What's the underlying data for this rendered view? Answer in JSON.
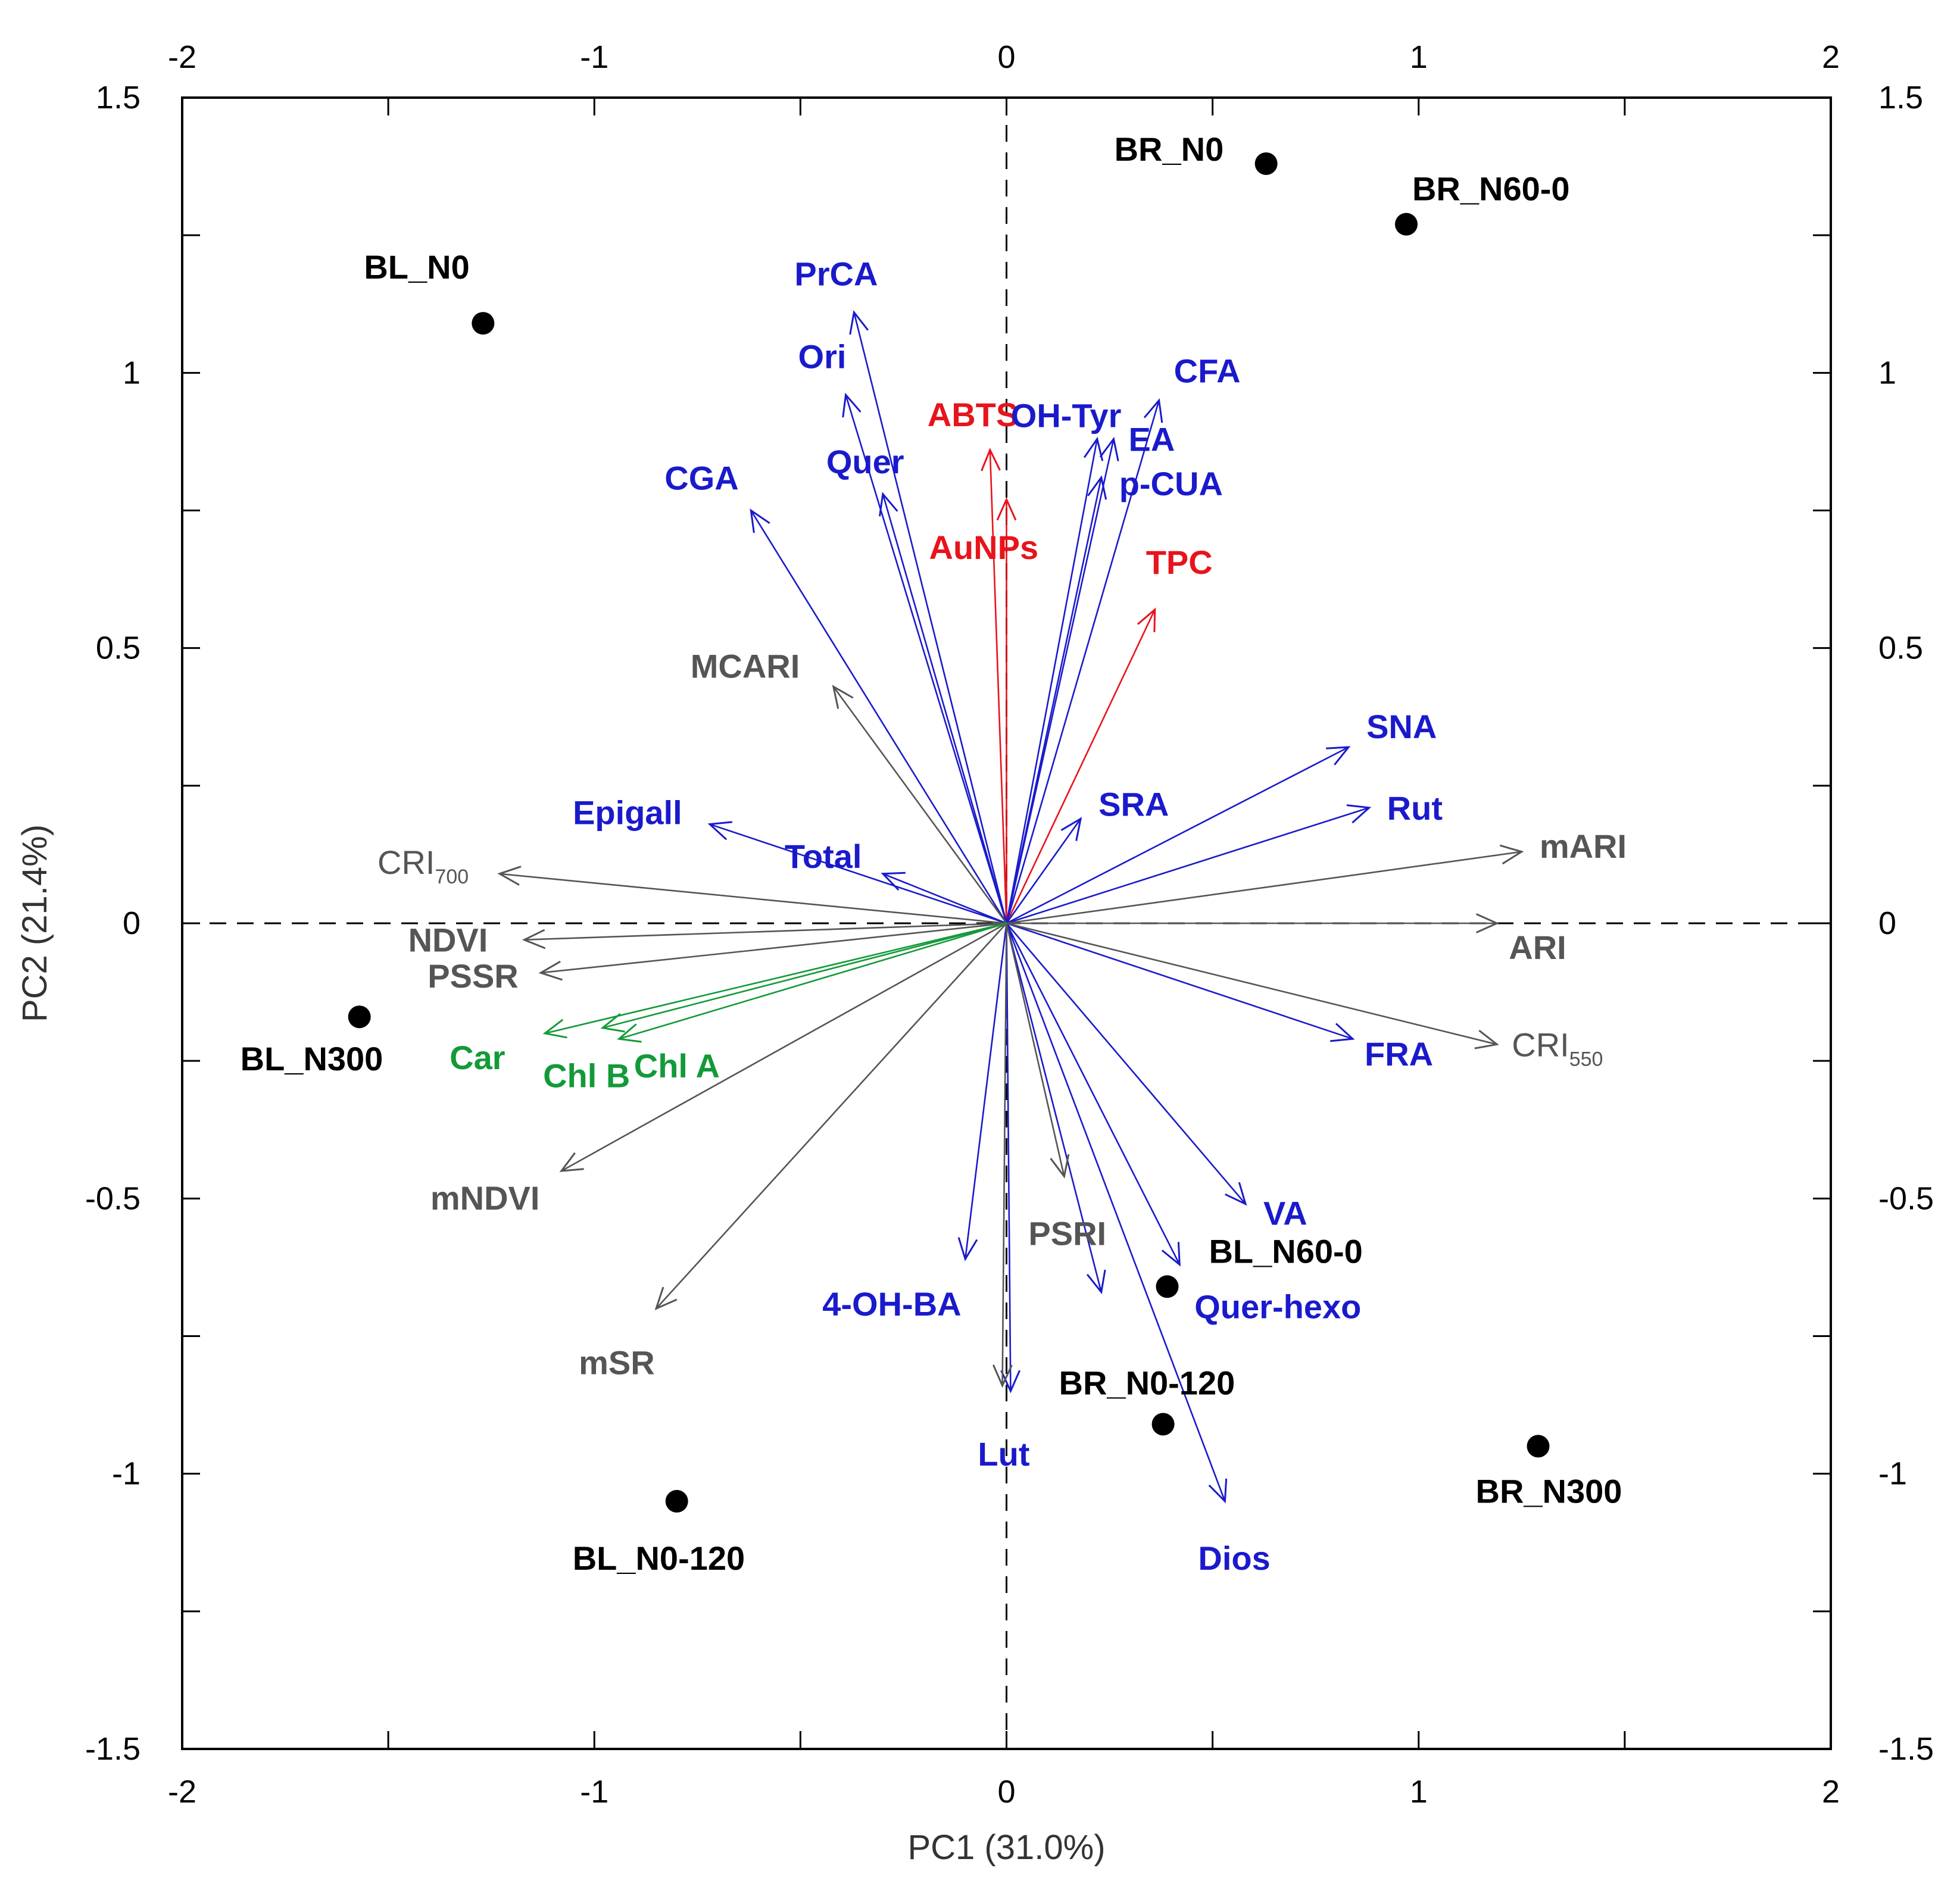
{
  "chart_data": {
    "type": "scatter",
    "subtype": "PCA biplot",
    "xlabel": "PC1 (31.0%)",
    "ylabel": "PC2 (21.4%)",
    "xlim": [
      -2,
      2
    ],
    "ylim": [
      -1.5,
      1.5
    ],
    "x_ticks": [
      -2,
      -1,
      0,
      1,
      2
    ],
    "x_tick_labels": [
      "-2",
      "-1",
      "0",
      "1",
      "2"
    ],
    "y_ticks": [
      -1.5,
      -1,
      -0.5,
      0,
      0.5,
      1,
      1.5
    ],
    "y_tick_labels": [
      "-1.5",
      "-1",
      "-0.5",
      "0",
      "0.5",
      "1",
      "1.5"
    ],
    "minor_step": 0.5,
    "minor_step_y": 0.25,
    "grid": false,
    "reference_lines": "dashed lines at x=0 and y=0",
    "colors": {
      "red": "#e8141b",
      "blue": "#1a1acc",
      "gray": "#555555",
      "green": "#139a38",
      "black": "#000000"
    },
    "samples": [
      {
        "label": "BR_N0",
        "x": 0.63,
        "y": 1.38
      },
      {
        "label": "BR_N60-0",
        "x": 0.97,
        "y": 1.27
      },
      {
        "label": "BL_N0",
        "x": -1.27,
        "y": 1.09
      },
      {
        "label": "BL_N300",
        "x": -1.57,
        "y": -0.17
      },
      {
        "label": "BL_N60-0",
        "x": 0.39,
        "y": -0.66
      },
      {
        "label": "BR_N0-120",
        "x": 0.38,
        "y": -0.91
      },
      {
        "label": "BR_N300",
        "x": 1.29,
        "y": -0.95
      },
      {
        "label": "BL_N0-120",
        "x": -0.8,
        "y": -1.05
      }
    ],
    "variables": [
      {
        "label": "ABTS",
        "x": -0.04,
        "y": 0.86,
        "group": "red"
      },
      {
        "label": "AuNPs",
        "x": 0.0,
        "y": 0.77,
        "group": "red"
      },
      {
        "label": "TPC",
        "x": 0.36,
        "y": 0.57,
        "group": "red"
      },
      {
        "label": "PrCA",
        "x": -0.37,
        "y": 1.11,
        "group": "blue"
      },
      {
        "label": "Ori",
        "x": -0.39,
        "y": 0.96,
        "group": "blue"
      },
      {
        "label": "Quer",
        "x": -0.3,
        "y": 0.78,
        "group": "blue"
      },
      {
        "label": "CGA",
        "x": -0.62,
        "y": 0.75,
        "group": "blue"
      },
      {
        "label": "OH-Tyr",
        "x": 0.22,
        "y": 0.88,
        "group": "blue"
      },
      {
        "label": "EA",
        "x": 0.26,
        "y": 0.88,
        "group": "blue"
      },
      {
        "label": "p-CUA",
        "x": 0.23,
        "y": 0.81,
        "group": "blue"
      },
      {
        "label": "CFA",
        "x": 0.37,
        "y": 0.95,
        "group": "blue"
      },
      {
        "label": "SNA",
        "x": 0.83,
        "y": 0.32,
        "group": "blue"
      },
      {
        "label": "Rut",
        "x": 0.88,
        "y": 0.21,
        "group": "blue"
      },
      {
        "label": "SRA",
        "x": 0.18,
        "y": 0.19,
        "group": "blue"
      },
      {
        "label": "Epigall",
        "x": -0.72,
        "y": 0.18,
        "group": "blue"
      },
      {
        "label": "Total",
        "x": -0.3,
        "y": 0.09,
        "group": "blue"
      },
      {
        "label": "FRA",
        "x": 0.84,
        "y": -0.21,
        "group": "blue"
      },
      {
        "label": "VA",
        "x": 0.58,
        "y": -0.51,
        "group": "blue"
      },
      {
        "label": "Quer-hexo",
        "x": 0.42,
        "y": -0.62,
        "group": "blue"
      },
      {
        "label": "4-OH-BA",
        "x": -0.1,
        "y": -0.61,
        "group": "blue"
      },
      {
        "label": "Lut",
        "x": 0.01,
        "y": -0.85,
        "group": "blue"
      },
      {
        "label": "Dios",
        "x": 0.53,
        "y": -1.05,
        "group": "blue"
      },
      {
        "label": "",
        "x": 0.23,
        "y": -0.67,
        "group": "blue"
      },
      {
        "label": "MCARI",
        "x": -0.42,
        "y": 0.43,
        "group": "gray"
      },
      {
        "label": "CRI",
        "sub": "700",
        "x": -1.23,
        "y": 0.09,
        "group": "gray"
      },
      {
        "label": "NDVI",
        "x": -1.17,
        "y": -0.03,
        "group": "gray"
      },
      {
        "label": "PSSR",
        "x": -1.13,
        "y": -0.09,
        "group": "gray"
      },
      {
        "label": "mNDVI",
        "x": -1.08,
        "y": -0.45,
        "group": "gray"
      },
      {
        "label": "mSR",
        "x": -0.85,
        "y": -0.7,
        "group": "gray"
      },
      {
        "label": "mARI",
        "x": 1.25,
        "y": 0.13,
        "group": "gray"
      },
      {
        "label": "ARI",
        "x": 1.19,
        "y": 0.0,
        "group": "gray"
      },
      {
        "label": "CRI",
        "sub": "550",
        "x": 1.19,
        "y": -0.22,
        "group": "gray"
      },
      {
        "label": "PSRI",
        "x": 0.14,
        "y": -0.46,
        "group": "gray"
      },
      {
        "label": "",
        "x": -0.01,
        "y": -0.84,
        "group": "gray"
      },
      {
        "label": "Car",
        "x": -1.12,
        "y": -0.2,
        "group": "green"
      },
      {
        "label": "Chl B",
        "x": -0.98,
        "y": -0.19,
        "group": "green"
      },
      {
        "label": "Chl A",
        "x": -0.94,
        "y": -0.21,
        "group": "green"
      }
    ]
  }
}
